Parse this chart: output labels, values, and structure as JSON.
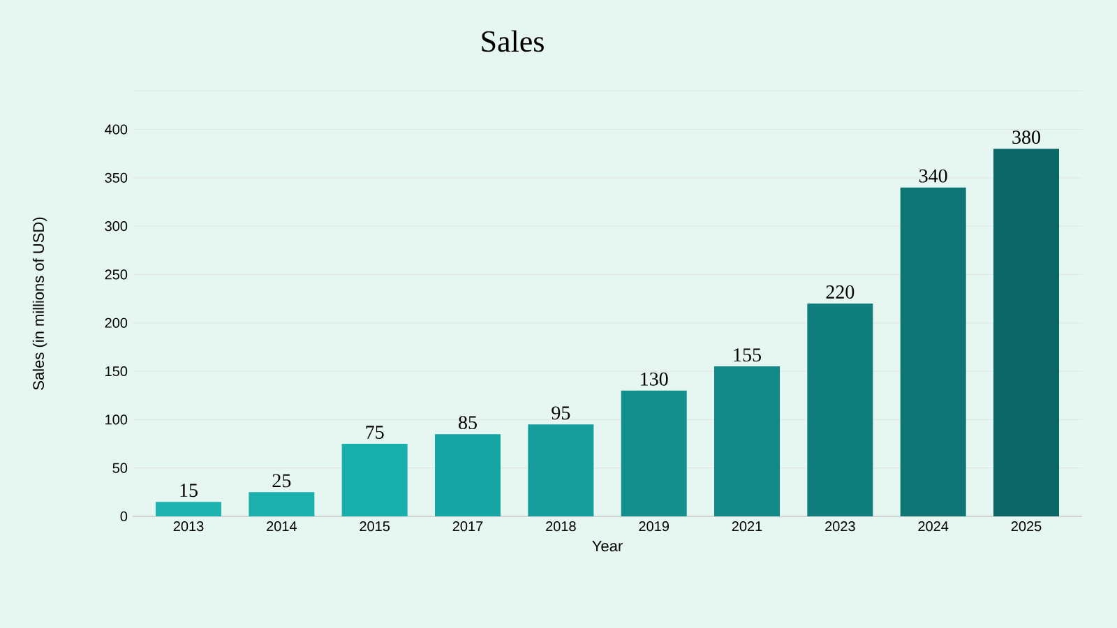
{
  "chart_data": {
    "type": "bar",
    "title": "Sales",
    "xlabel": "Year",
    "ylabel": "Sales (in millions of USD)",
    "categories": [
      "2013",
      "2014",
      "2015",
      "2017",
      "2018",
      "2019",
      "2021",
      "2023",
      "2024",
      "2025"
    ],
    "values": [
      15,
      25,
      75,
      85,
      95,
      130,
      155,
      220,
      340,
      380
    ],
    "colors": [
      "#1fb3b0",
      "#1cb0ad",
      "#18aeab",
      "#17a5a3",
      "#169d9c",
      "#148f8e",
      "#13898a",
      "#117e7e",
      "#0f7575",
      "#0b6666"
    ],
    "ylim": [
      0,
      440
    ],
    "yticks": [
      0,
      50,
      100,
      150,
      200,
      250,
      300,
      350,
      400,
      {
        "value": 440,
        "label": null
      }
    ],
    "grid": "y",
    "data_labels": true
  }
}
